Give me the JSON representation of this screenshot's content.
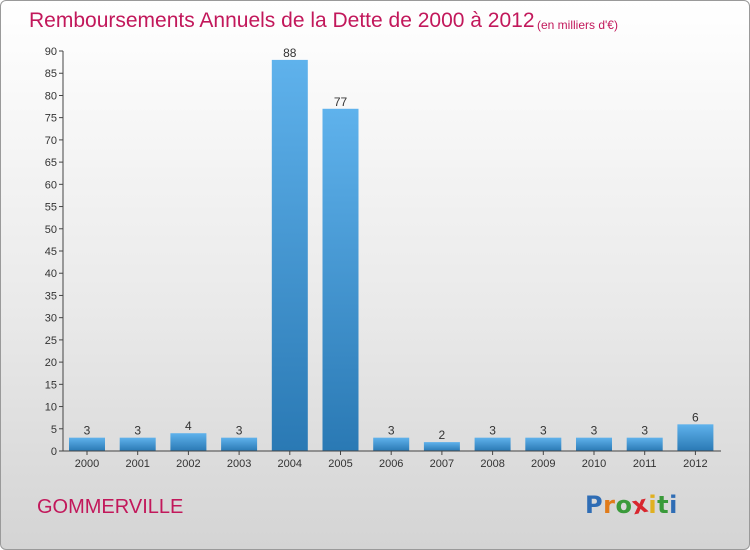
{
  "title": "Remboursements Annuels de la Dette de 2000 à 2012",
  "unit": "(en milliers d'€)",
  "commune": "GOMMERVILLE",
  "brand": {
    "letters": [
      "P",
      "r",
      "o",
      "x",
      "i",
      "t",
      "i"
    ],
    "colors": [
      "#2f6db5",
      "#e07b1a",
      "#3a9a3a",
      "#d8262e",
      "#e0b020",
      "#3a9a3a",
      "#2f6db5"
    ]
  },
  "colors": {
    "bar_top": "#5fb2ec",
    "bar_bottom": "#2a79b4",
    "title": "#c2185b",
    "axis": "#444444"
  },
  "chart_data": {
    "type": "bar",
    "categories": [
      "2000",
      "2001",
      "2002",
      "2003",
      "2004",
      "2005",
      "2006",
      "2007",
      "2008",
      "2009",
      "2010",
      "2011",
      "2012"
    ],
    "values": [
      3,
      3,
      4,
      3,
      88,
      77,
      3,
      2,
      3,
      3,
      3,
      3,
      6
    ],
    "value_labels": [
      "3",
      "3",
      "4",
      "3",
      "88",
      "77",
      "3",
      "2",
      "3",
      "3",
      "3",
      "3",
      "6"
    ],
    "y_ticks": [
      0,
      5,
      10,
      15,
      20,
      25,
      30,
      35,
      40,
      45,
      50,
      55,
      60,
      65,
      70,
      75,
      80,
      85,
      90
    ],
    "ylim": [
      0,
      90
    ],
    "grid": false,
    "legend": "none"
  }
}
